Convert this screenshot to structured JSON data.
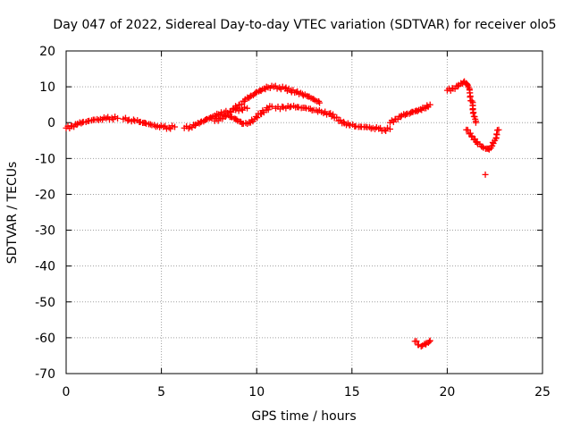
{
  "chart_data": {
    "type": "scatter",
    "title": "Day 047 of 2022, Sidereal Day-to-day VTEC variation (SDTVAR) for receiver olo5",
    "xlabel": "GPS time / hours",
    "ylabel": "SDTVAR / TECUs",
    "xlim": [
      0,
      25
    ],
    "ylim": [
      -70,
      20
    ],
    "xticks": [
      0,
      5,
      10,
      15,
      20,
      25
    ],
    "yticks": [
      20,
      10,
      0,
      -10,
      -20,
      -30,
      -40,
      -50,
      -60,
      -70
    ],
    "grid": true,
    "marker": "+",
    "colors": {
      "series": "#ff0000",
      "grid": "#a0a0a0",
      "axis": "#000000"
    },
    "series": [
      {
        "name": "arc-0",
        "x": [
          0.0,
          0.3,
          0.6,
          0.9,
          1.2,
          1.5,
          1.8,
          2.1,
          2.4,
          2.7
        ],
        "y": [
          -1.5,
          -1.0,
          -0.3,
          0.2,
          0.5,
          0.8,
          1.0,
          1.2,
          1.3,
          1.2
        ]
      },
      {
        "name": "arc-1",
        "x": [
          3.0,
          3.3,
          3.6,
          3.9,
          4.2,
          4.5,
          4.8,
          5.1,
          5.4,
          5.7
        ],
        "y": [
          1.0,
          0.8,
          0.5,
          0.2,
          -0.3,
          -0.7,
          -1.0,
          -1.2,
          -1.4,
          -1.2
        ]
      },
      {
        "name": "arc-2",
        "x": [
          6.2,
          6.5,
          6.8,
          7.1,
          7.4,
          7.7,
          8.0,
          8.3,
          8.6,
          8.9,
          9.2,
          9.5
        ],
        "y": [
          -1.5,
          -1.2,
          -0.5,
          0.3,
          1.0,
          1.7,
          2.3,
          2.8,
          3.2,
          3.5,
          3.8,
          4.0
        ]
      },
      {
        "name": "arc-3",
        "x": [
          7.8,
          8.1,
          8.4,
          8.7,
          9.0,
          9.3,
          9.6,
          9.9,
          10.2,
          10.5,
          10.8
        ],
        "y": [
          0.5,
          1.2,
          2.0,
          1.5,
          0.5,
          -0.3,
          0.0,
          1.0,
          2.5,
          3.5,
          4.5
        ]
      },
      {
        "name": "arc-4",
        "x": [
          8.8,
          9.1,
          9.4,
          9.7,
          10.0,
          10.3,
          10.6,
          10.9,
          11.2,
          11.5,
          11.8,
          12.1,
          12.4,
          12.7,
          13.0,
          13.3
        ],
        "y": [
          4.0,
          5.0,
          6.5,
          7.5,
          8.5,
          9.3,
          9.8,
          10.0,
          9.8,
          9.5,
          9.0,
          8.5,
          8.0,
          7.3,
          6.5,
          5.5
        ]
      },
      {
        "name": "arc-5",
        "x": [
          11.0,
          11.4,
          11.8,
          12.2,
          12.6,
          13.0,
          13.4,
          13.8,
          14.2
        ],
        "y": [
          4.0,
          4.3,
          4.5,
          4.3,
          4.0,
          3.5,
          3.0,
          2.5,
          1.5
        ]
      },
      {
        "name": "arc-6",
        "x": [
          14.3,
          14.6,
          14.9,
          15.2,
          15.5,
          15.8,
          16.1,
          16.4,
          16.7,
          17.0
        ],
        "y": [
          0.5,
          -0.2,
          -0.7,
          -1.0,
          -1.2,
          -1.3,
          -1.5,
          -1.7,
          -2.0,
          -1.8
        ]
      },
      {
        "name": "arc-7",
        "x": [
          17.0,
          17.3,
          17.6,
          17.9,
          18.2,
          18.5,
          18.8,
          19.1
        ],
        "y": [
          0.0,
          1.0,
          2.0,
          2.5,
          3.0,
          3.5,
          4.0,
          5.0
        ]
      },
      {
        "name": "arc-8",
        "x": [
          18.3,
          18.5,
          18.7,
          18.9,
          19.1
        ],
        "y": [
          -61.0,
          -62.0,
          -62.2,
          -61.5,
          -60.8
        ]
      },
      {
        "name": "arc-9",
        "x": [
          20.0,
          20.3,
          20.6,
          20.9,
          21.1,
          21.3,
          21.5
        ],
        "y": [
          9.0,
          9.5,
          10.5,
          11.5,
          10.0,
          6.0,
          0.0
        ]
      },
      {
        "name": "arc-10",
        "x": [
          21.0,
          21.3,
          21.6,
          21.9,
          22.2,
          22.5,
          22.7
        ],
        "y": [
          -2.0,
          -4.0,
          -6.0,
          -7.0,
          -7.5,
          -5.0,
          -2.0
        ]
      },
      {
        "name": "arc-11",
        "x": [
          22.0
        ],
        "y": [
          -14.5
        ]
      }
    ]
  }
}
